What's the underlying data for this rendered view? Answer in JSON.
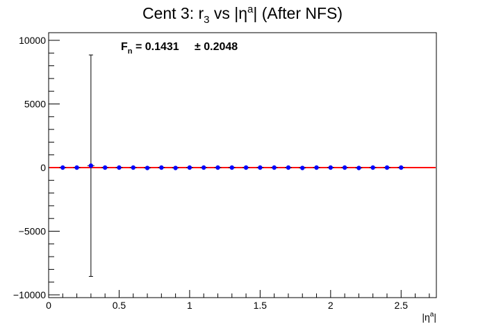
{
  "chart_data": {
    "type": "scatter",
    "title": {
      "prefix": "Cent 3: r",
      "sub": "3",
      "mid": " vs |η",
      "sup": "a",
      "suffix": "| (After NFS)"
    },
    "xlabel": {
      "base": "|η",
      "sup": "a",
      "end": "|"
    },
    "ylabel": "",
    "xlim": [
      0,
      2.75
    ],
    "ylim": [
      -10000,
      10000
    ],
    "x_ticks": [
      0,
      0.5,
      1,
      1.5,
      2,
      2.5
    ],
    "x_tick_labels": [
      "0",
      "0.5",
      "1",
      "1.5",
      "2",
      "2.5"
    ],
    "y_ticks": [
      -10000,
      -5000,
      0,
      5000,
      10000
    ],
    "y_tick_labels": [
      "−10000",
      "−5000",
      "0",
      "5000",
      "10000"
    ],
    "grid": false,
    "legend": "none",
    "annotation": {
      "label": "F",
      "sub": "n",
      "value": " = 0.1431",
      "pm": "± 0.2048"
    },
    "fit_line": {
      "y": 0,
      "color": "#ff0000"
    },
    "marker_color": "#0000ff",
    "points": [
      {
        "x": 0.1,
        "y": 0,
        "err": 40
      },
      {
        "x": 0.2,
        "y": 0,
        "err": 40
      },
      {
        "x": 0.3,
        "y": 150,
        "err": 8700
      },
      {
        "x": 0.4,
        "y": 0,
        "err": 40
      },
      {
        "x": 0.5,
        "y": 0,
        "err": 40
      },
      {
        "x": 0.6,
        "y": 0,
        "err": 40
      },
      {
        "x": 0.7,
        "y": -30,
        "err": 40
      },
      {
        "x": 0.8,
        "y": 0,
        "err": 40
      },
      {
        "x": 0.9,
        "y": -30,
        "err": 40
      },
      {
        "x": 1.0,
        "y": 0,
        "err": 40
      },
      {
        "x": 1.1,
        "y": 0,
        "err": 40
      },
      {
        "x": 1.2,
        "y": 0,
        "err": 40
      },
      {
        "x": 1.3,
        "y": 0,
        "err": 40
      },
      {
        "x": 1.4,
        "y": 0,
        "err": 40
      },
      {
        "x": 1.5,
        "y": 0,
        "err": 40
      },
      {
        "x": 1.6,
        "y": 0,
        "err": 40
      },
      {
        "x": 1.7,
        "y": 0,
        "err": 40
      },
      {
        "x": 1.8,
        "y": -30,
        "err": 40
      },
      {
        "x": 1.9,
        "y": 0,
        "err": 40
      },
      {
        "x": 2.0,
        "y": 0,
        "err": 40
      },
      {
        "x": 2.1,
        "y": 0,
        "err": 40
      },
      {
        "x": 2.2,
        "y": -30,
        "err": 40
      },
      {
        "x": 2.3,
        "y": 0,
        "err": 40
      },
      {
        "x": 2.4,
        "y": 0,
        "err": 40
      },
      {
        "x": 2.5,
        "y": 0,
        "err": 40
      }
    ]
  }
}
